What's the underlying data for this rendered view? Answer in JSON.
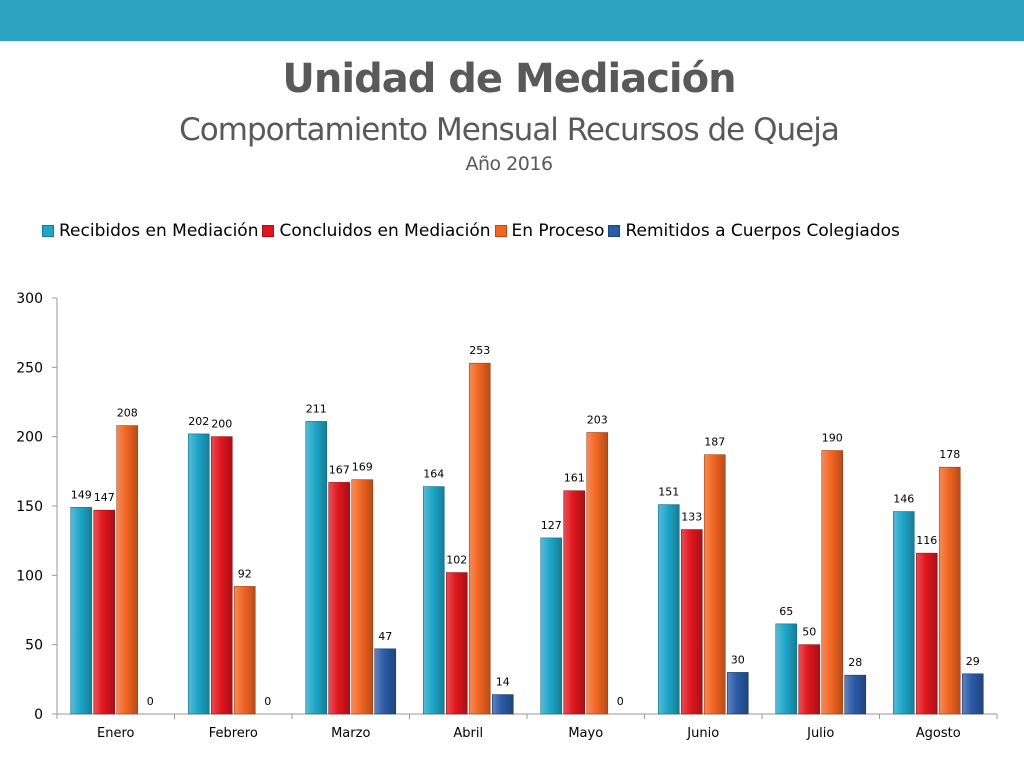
{
  "slide": {
    "title": "Unidad de Mediación",
    "subtitle": "Comportamiento Mensual Recursos de Queja",
    "year": "Año 2016",
    "accent": "#2ea3c1"
  },
  "chart_data": {
    "type": "bar",
    "title": "",
    "xlabel": "",
    "ylabel": "",
    "ylim": [
      0,
      300
    ],
    "yticks": [
      "0",
      "50",
      "100",
      "150",
      "200",
      "250",
      "300"
    ],
    "legend_position": "top",
    "categories": [
      "Enero",
      "Febrero",
      "Marzo",
      "Abril",
      "Mayo",
      "Junio",
      "Julio",
      "Agosto"
    ],
    "series": [
      {
        "name": "Recibidos en Mediación",
        "color": "#1ea6c8",
        "values": [
          149,
          202,
          211,
          164,
          127,
          151,
          65,
          146
        ]
      },
      {
        "name": "Concluidos en Mediación",
        "color": "#e0161d",
        "values": [
          147,
          200,
          167,
          102,
          161,
          133,
          50,
          116
        ]
      },
      {
        "name": "En Proceso",
        "color": "#f26522",
        "values": [
          208,
          92,
          169,
          253,
          203,
          187,
          190,
          178
        ]
      },
      {
        "name": "Remitidos a Cuerpos Colegiados",
        "color": "#2b5aa6",
        "values": [
          0,
          0,
          47,
          14,
          0,
          30,
          28,
          29
        ]
      }
    ]
  }
}
